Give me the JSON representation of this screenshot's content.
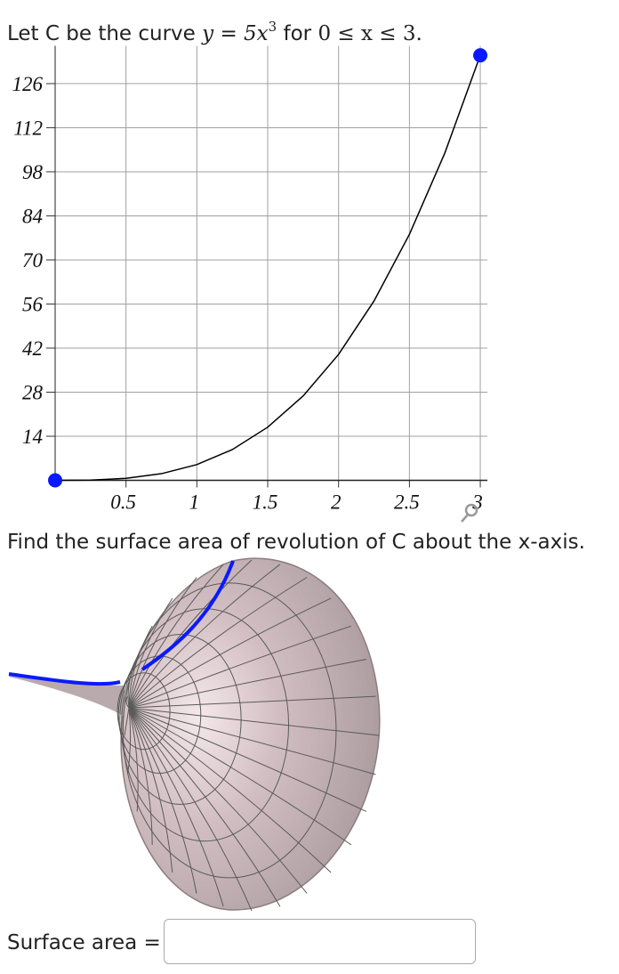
{
  "question": {
    "intro": "Let C be the curve",
    "equation": "y = 5x",
    "exponent": "3",
    "condition_word": "for",
    "condition": "0 ≤ x ≤ 3.",
    "task": "Find the surface area of revolution of C about the x-axis.",
    "answer_label": "Surface area ="
  },
  "chart_data": {
    "type": "line",
    "x": [
      0,
      0.25,
      0.5,
      0.75,
      1,
      1.25,
      1.5,
      1.75,
      2,
      2.25,
      2.5,
      2.75,
      3
    ],
    "series": [
      {
        "color": "#000000",
        "values": [
          0,
          0.078125,
          0.625,
          2.109375,
          5,
          9.765625,
          16.875,
          26.796875,
          40,
          56.953125,
          78.125,
          103.984375,
          135
        ]
      }
    ],
    "endpoint_color": "#0a1aff",
    "xlim": [
      0,
      3.05
    ],
    "ylim": [
      0,
      138
    ],
    "xticks": [
      0.5,
      1,
      1.5,
      2,
      2.5,
      3
    ],
    "yticks": [
      14,
      28,
      42,
      56,
      70,
      84,
      98,
      112,
      126
    ],
    "grid": true
  }
}
